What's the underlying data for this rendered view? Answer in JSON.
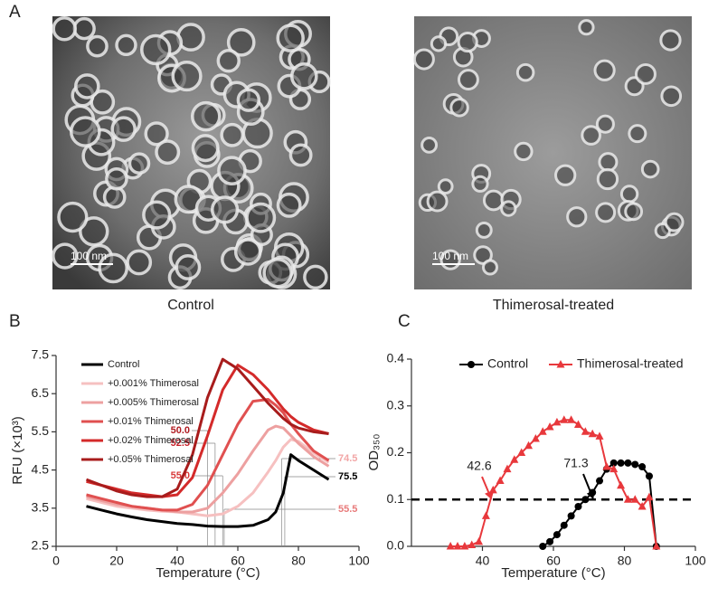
{
  "figure": {
    "panel_labels": [
      "A",
      "B",
      "C"
    ],
    "images": [
      {
        "caption": "Control",
        "scale_bar": "100 nm"
      },
      {
        "caption": "Thimerosal-treated",
        "scale_bar": "100 nm"
      }
    ]
  },
  "chart_data": [
    {
      "type": "line",
      "xlabel": "Temperature (°C)",
      "ylabel": "RFU (×10³)",
      "xlim": [
        0,
        100
      ],
      "xticks": [
        0,
        20,
        40,
        60,
        80,
        100
      ],
      "ylim": [
        2.5,
        7.5
      ],
      "yticks": [
        2.5,
        3.5,
        4.5,
        5.5,
        6.5,
        7.5
      ],
      "legend": "upper left",
      "x": [
        10,
        15,
        20,
        25,
        30,
        35,
        40,
        45,
        50,
        55,
        60,
        65,
        70,
        72.5,
        75,
        77.5,
        80,
        85,
        90
      ],
      "series": [
        {
          "name": "Control",
          "color": "#000000",
          "values": [
            3.55,
            3.45,
            3.35,
            3.27,
            3.2,
            3.15,
            3.1,
            3.07,
            3.03,
            3.02,
            3.02,
            3.05,
            3.2,
            3.4,
            3.9,
            4.9,
            4.75,
            4.5,
            4.25
          ]
        },
        {
          "name": "+0.001% Thimerosal",
          "color": "#f6c0c0",
          "values": [
            3.75,
            3.65,
            3.55,
            3.5,
            3.45,
            3.42,
            3.4,
            3.35,
            3.3,
            3.35,
            3.55,
            3.9,
            4.45,
            4.75,
            5.1,
            5.3,
            5.25,
            4.95,
            4.7
          ]
        },
        {
          "name": "+0.005% Thimerosal",
          "color": "#eda0a0",
          "values": [
            3.8,
            3.7,
            3.6,
            3.55,
            3.5,
            3.45,
            3.4,
            3.4,
            3.5,
            3.9,
            4.4,
            5.0,
            5.55,
            5.65,
            5.6,
            5.4,
            5.2,
            4.85,
            4.6
          ]
        },
        {
          "name": "+0.01% Thimerosal",
          "color": "#e05050",
          "values": [
            3.85,
            3.75,
            3.65,
            3.55,
            3.5,
            3.45,
            3.45,
            3.6,
            4.1,
            4.9,
            5.7,
            6.3,
            6.35,
            6.2,
            6.0,
            5.7,
            5.45,
            5.0,
            4.75
          ]
        },
        {
          "name": "+0.02% Thimerosal",
          "color": "#d42a2a",
          "values": [
            4.2,
            4.1,
            4.0,
            3.9,
            3.85,
            3.8,
            3.85,
            4.3,
            5.4,
            6.6,
            7.25,
            7.0,
            6.6,
            6.35,
            6.1,
            5.9,
            5.75,
            5.55,
            5.45
          ]
        },
        {
          "name": "+0.05% Thimerosal",
          "color": "#a81c1c",
          "values": [
            4.25,
            4.1,
            3.95,
            3.85,
            3.8,
            3.8,
            4.0,
            4.9,
            6.4,
            7.4,
            7.15,
            6.7,
            6.25,
            6.05,
            5.85,
            5.7,
            5.6,
            5.5,
            5.45
          ]
        }
      ],
      "annotations": [
        {
          "value": 50,
          "label": "50.0",
          "color": "#b01c22"
        },
        {
          "value": 52.5,
          "color": "#c8202a"
        },
        {
          "value": 55,
          "label": "55.0",
          "color": "#d83a3a"
        },
        {
          "value": 74.5,
          "color": "#f2a6a6"
        },
        {
          "value": 55.5,
          "color": "#e87a7a"
        },
        {
          "value": 75.5,
          "color": "#000000"
        }
      ]
    },
    {
      "type": "line",
      "xlabel": "Temperature (°C)",
      "ylabel": "OD₃₅₀",
      "xlim": [
        20,
        100
      ],
      "xticks": [
        40,
        60,
        80,
        100
      ],
      "ylim": [
        0,
        0.4
      ],
      "yticks": [
        {
          "value": 0,
          "label": "0.0"
        },
        0.1,
        0.2,
        0.3,
        0.4
      ],
      "legend": "upper center",
      "reference_line": 0.1,
      "series": [
        {
          "name": "Control",
          "color": "#000000",
          "marker": "circle",
          "x": [
            57,
            59,
            61,
            63,
            65,
            67,
            69,
            71,
            73,
            75,
            77,
            79,
            81,
            83,
            85,
            87,
            89
          ],
          "values": [
            0.0,
            0.01,
            0.025,
            0.045,
            0.065,
            0.085,
            0.1,
            0.115,
            0.14,
            0.165,
            0.178,
            0.178,
            0.178,
            0.175,
            0.17,
            0.15,
            0.0
          ]
        },
        {
          "name": "Thimerosal-treated",
          "color": "#e8383c",
          "marker": "triangle",
          "x": [
            31,
            33,
            35,
            37,
            39,
            41,
            43,
            45,
            47,
            49,
            51,
            53,
            55,
            57,
            59,
            61,
            63,
            65,
            67,
            69,
            71,
            73,
            75,
            77,
            79,
            81,
            83,
            85,
            87,
            89
          ],
          "values": [
            0.0,
            0.0,
            0.0,
            0.003,
            0.01,
            0.065,
            0.12,
            0.14,
            0.165,
            0.185,
            0.2,
            0.215,
            0.23,
            0.245,
            0.255,
            0.265,
            0.27,
            0.27,
            0.26,
            0.245,
            0.24,
            0.235,
            0.17,
            0.165,
            0.13,
            0.1,
            0.1,
            0.085,
            0.105,
            0.0
          ]
        }
      ],
      "annotations": [
        {
          "value": 42.6,
          "color": "#e8383c"
        },
        {
          "value": 71.3,
          "color": "#000000"
        }
      ]
    }
  ]
}
